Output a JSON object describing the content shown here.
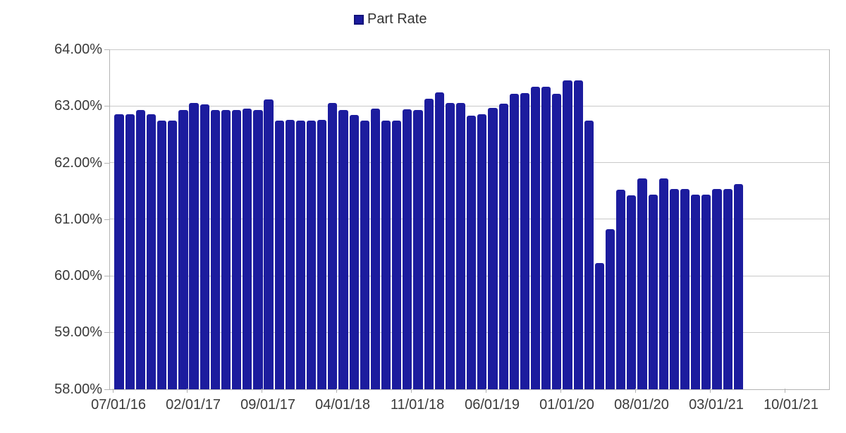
{
  "legend": {
    "label": "Part Rate",
    "marker_color": "#1c1c9e"
  },
  "chart_data": {
    "type": "bar",
    "title": "",
    "series_name": "Part Rate",
    "bar_color": "#1c1c9e",
    "grid": "horizontal",
    "legend_position": "top-center",
    "categories": [
      "07/01/16",
      "08/01/16",
      "09/01/16",
      "10/01/16",
      "11/01/16",
      "12/01/16",
      "01/01/17",
      "02/01/17",
      "03/01/17",
      "04/01/17",
      "05/01/17",
      "06/01/17",
      "07/01/17",
      "08/01/17",
      "09/01/17",
      "10/01/17",
      "11/01/17",
      "12/01/17",
      "01/01/18",
      "02/01/18",
      "03/01/18",
      "04/01/18",
      "05/01/18",
      "06/01/18",
      "07/01/18",
      "08/01/18",
      "09/01/18",
      "10/01/18",
      "11/01/18",
      "12/01/18",
      "01/01/19",
      "02/01/19",
      "03/01/19",
      "04/01/19",
      "05/01/19",
      "06/01/19",
      "07/01/19",
      "08/01/19",
      "09/01/19",
      "10/01/19",
      "11/01/19",
      "12/01/19",
      "01/01/20",
      "02/01/20",
      "03/01/20",
      "04/01/20",
      "05/01/20",
      "06/01/20",
      "07/01/20",
      "08/01/20",
      "09/01/20",
      "10/01/20",
      "11/01/20",
      "12/01/20",
      "01/01/21",
      "02/01/21",
      "03/01/21",
      "04/01/21",
      "05/01/21"
    ],
    "values": [
      62.85,
      62.85,
      62.93,
      62.85,
      62.74,
      62.74,
      62.93,
      63.05,
      63.03,
      62.93,
      62.93,
      62.93,
      62.95,
      62.93,
      63.12,
      62.74,
      62.75,
      62.74,
      62.74,
      62.75,
      63.05,
      62.93,
      62.84,
      62.74,
      62.95,
      62.74,
      62.74,
      62.94,
      62.93,
      63.13,
      63.24,
      63.05,
      63.05,
      62.83,
      62.85,
      62.96,
      63.04,
      63.22,
      63.23,
      63.34,
      63.34,
      63.22,
      63.45,
      63.45,
      62.74,
      60.22,
      60.82,
      61.52,
      61.42,
      61.72,
      61.43,
      61.72,
      61.53,
      61.53,
      61.43,
      61.43,
      61.53,
      61.53,
      61.62
    ],
    "y_axis": {
      "min": 58,
      "max": 64,
      "step": 1,
      "format": "percent",
      "tick_labels": [
        "64.00%",
        "63.00%",
        "62.00%",
        "61.00%",
        "60.00%",
        "59.00%",
        "58.00%"
      ]
    },
    "x_axis": {
      "visible_labels": [
        "07/01/16",
        "02/01/17",
        "09/01/17",
        "04/01/18",
        "11/01/18",
        "06/01/19",
        "01/01/20",
        "08/01/20",
        "03/01/21",
        "10/01/21"
      ],
      "label_every_n_slots": 7,
      "total_slots": 67
    }
  },
  "colors": {
    "bar": "#1c1c9e",
    "gridline": "#c9c9c9",
    "axis_line": "#b3b3b3",
    "text": "#3a3a3a",
    "background": "#ffffff"
  }
}
